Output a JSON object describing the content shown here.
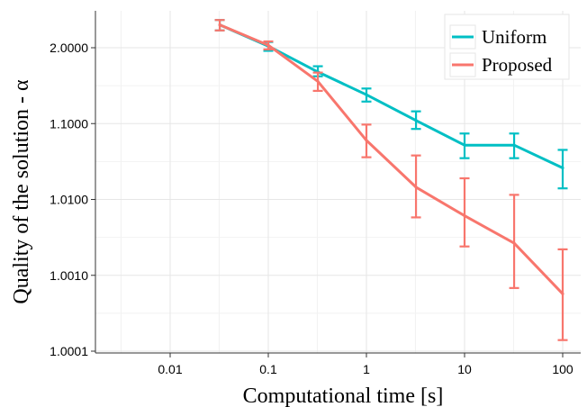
{
  "chart_data": {
    "type": "line",
    "title": "",
    "xlabel": "Computational time [s]",
    "ylabel": "Quality of the solution - α",
    "x_scale": "log",
    "y_scale": "log(α-1)",
    "xlim": [
      0.002,
      180
    ],
    "x_ticks": [
      {
        "value": 0.01,
        "label": "0.01"
      },
      {
        "value": 0.1,
        "label": "0.1"
      },
      {
        "value": 1,
        "label": "1"
      },
      {
        "value": 10,
        "label": "10"
      },
      {
        "value": 100,
        "label": "100"
      }
    ],
    "y_ticks": [
      {
        "value": 2.0,
        "label": "2.0000"
      },
      {
        "value": 1.1,
        "label": "1.1000"
      },
      {
        "value": 1.01,
        "label": "1.0100"
      },
      {
        "value": 1.001,
        "label": "1.0010"
      },
      {
        "value": 1.0001,
        "label": "1.0001"
      }
    ],
    "grid": true,
    "legend_position": "top-right",
    "series": [
      {
        "name": "Uniform",
        "color": "#00bfc4",
        "x": [
          0.032,
          0.1,
          0.32,
          1,
          3.2,
          10,
          32,
          100
        ],
        "y": [
          3.0,
          2.05,
          1.48,
          1.24,
          1.11,
          1.052,
          1.052,
          1.026
        ],
        "ylow": [
          2.69,
          1.91,
          1.42,
          1.195,
          1.085,
          1.035,
          1.035,
          1.014
        ],
        "yhigh": [
          3.32,
          2.19,
          1.57,
          1.29,
          1.145,
          1.074,
          1.074,
          1.045
        ]
      },
      {
        "name": "Proposed",
        "color": "#f8766d",
        "x": [
          0.032,
          0.1,
          0.32,
          1,
          3.2,
          10,
          32,
          100
        ],
        "y": [
          3.0,
          2.08,
          1.36,
          1.06,
          1.0145,
          1.0061,
          1.00265,
          1.00057
        ],
        "ylow": [
          2.69,
          1.95,
          1.27,
          1.036,
          1.0058,
          1.0024,
          1.00068,
          1.00014
        ],
        "yhigh": [
          3.32,
          2.21,
          1.47,
          1.097,
          1.038,
          1.019,
          1.0115,
          1.0022
        ]
      }
    ]
  }
}
